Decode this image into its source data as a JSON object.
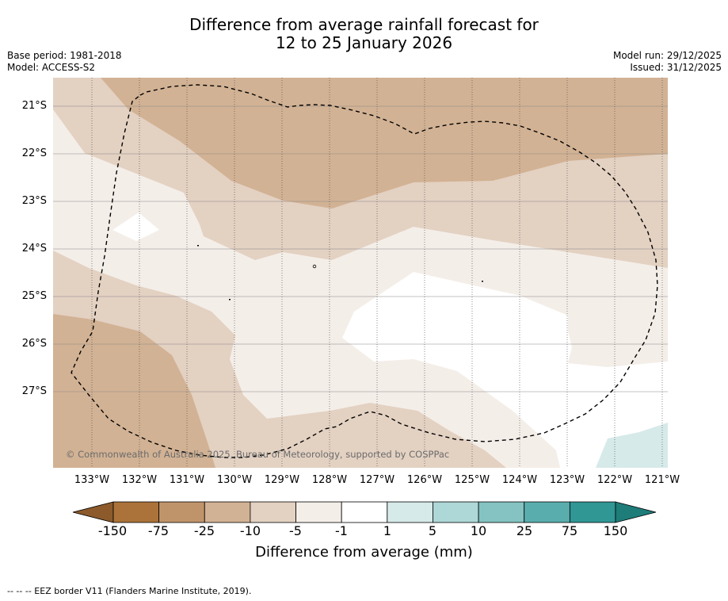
{
  "title": {
    "line1": "Difference from average rainfall forecast for",
    "line2": "12 to 25 January 2026"
  },
  "meta_left": {
    "base_period": "Base period: 1981-2018",
    "model": "Model: ACCESS-S2"
  },
  "meta_right": {
    "model_run": "Model run: 29/12/2025",
    "issued": "Issued: 31/12/2025"
  },
  "map": {
    "latitude_labels": [
      "21°S",
      "22°S",
      "23°S",
      "24°S",
      "25°S",
      "26°S",
      "27°S"
    ],
    "longitude_labels": [
      "133°W",
      "132°W",
      "131°W",
      "130°W",
      "129°W",
      "128°W",
      "127°W",
      "126°W",
      "125°W",
      "124°W",
      "123°W",
      "122°W",
      "121°W"
    ],
    "copyright": "© Commonwealth of Australia 2025, Bureau of Meteorology, supported by COSPPac"
  },
  "colorbar": {
    "tick_labels": [
      "-150",
      "-75",
      "-25",
      "-10",
      "-5",
      "-1",
      "1",
      "5",
      "10",
      "25",
      "75",
      "150"
    ],
    "colors": [
      "#ab7339",
      "#c0946a",
      "#d2b294",
      "#e3d1c2",
      "#f4eee8",
      "#ffffff",
      "#d6eae9",
      "#add8d7",
      "#84c3c2",
      "#5aadad",
      "#309795"
    ],
    "under_color": "#8c5a2b",
    "over_color": "#1e7c79",
    "label": "Difference from average (mm)"
  },
  "footer": {
    "legend": "--  --  -- EEZ border V11 (Flanders Marine Institute, 2019)."
  }
}
